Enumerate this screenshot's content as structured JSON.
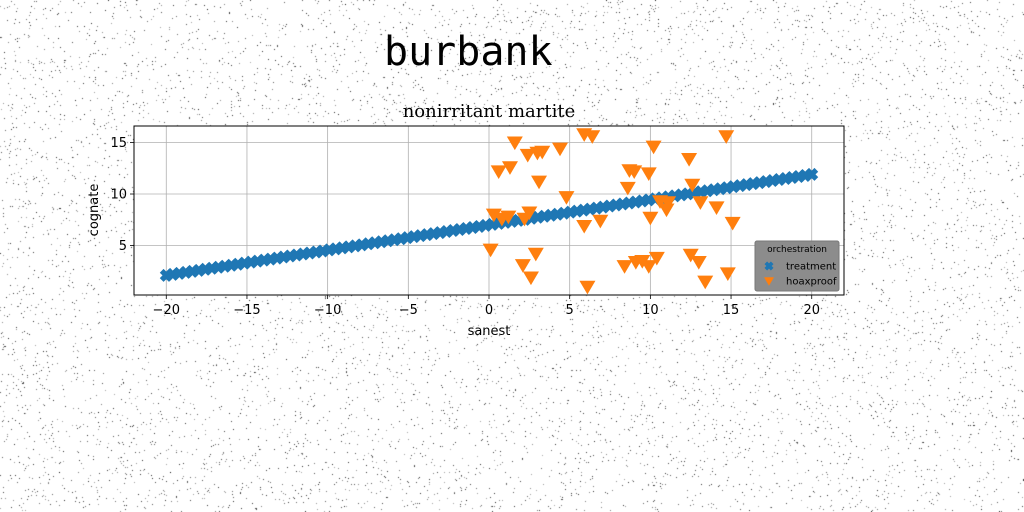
{
  "figure": {
    "suptitle": "burbank"
  },
  "chart_data": {
    "type": "scatter",
    "title": "nonirritant martite",
    "xlabel": "sanest",
    "ylabel": "cognate",
    "xlim": [
      -22,
      22
    ],
    "ylim": [
      0.2,
      16.6
    ],
    "xticks": [
      -20,
      -15,
      -10,
      -5,
      0,
      5,
      10,
      15,
      20
    ],
    "xtick_labels": [
      "−20",
      "−15",
      "−10",
      "−5",
      "0",
      "5",
      "10",
      "15",
      "20"
    ],
    "yticks": [
      5,
      10,
      15
    ],
    "ytick_labels": [
      "5",
      "10",
      "15"
    ],
    "grid": true,
    "legend": {
      "title": "orchestration",
      "placement": "lower-right"
    },
    "series": [
      {
        "name": "treatment",
        "marker": "X",
        "color": "#1f77b4",
        "line": {
          "x_start": -20,
          "x_end": 20,
          "y_start": 2.1,
          "y_end": 11.9,
          "count": 100
        }
      },
      {
        "name": "hoaxproof",
        "marker": "v",
        "color": "#ff7f0e",
        "points": [
          [
            0.1,
            4.6
          ],
          [
            0.3,
            8.0
          ],
          [
            0.8,
            7.6
          ],
          [
            0.6,
            12.2
          ],
          [
            1.2,
            7.8
          ],
          [
            1.3,
            12.6
          ],
          [
            1.6,
            15.0
          ],
          [
            2.1,
            3.1
          ],
          [
            2.2,
            7.6
          ],
          [
            2.4,
            13.8
          ],
          [
            2.5,
            8.2
          ],
          [
            2.6,
            1.9
          ],
          [
            2.9,
            4.2
          ],
          [
            3.0,
            14.0
          ],
          [
            3.1,
            11.2
          ],
          [
            3.3,
            14.1
          ],
          [
            4.4,
            14.4
          ],
          [
            4.8,
            9.7
          ],
          [
            5.9,
            6.9
          ],
          [
            5.9,
            15.8
          ],
          [
            6.1,
            1.0
          ],
          [
            6.4,
            15.6
          ],
          [
            6.9,
            7.4
          ],
          [
            8.4,
            3.0
          ],
          [
            8.6,
            10.6
          ],
          [
            8.7,
            12.3
          ],
          [
            9.0,
            12.2
          ],
          [
            9.1,
            3.4
          ],
          [
            9.5,
            3.5
          ],
          [
            9.9,
            3.0
          ],
          [
            9.9,
            12.0
          ],
          [
            10.0,
            7.7
          ],
          [
            10.2,
            14.6
          ],
          [
            10.4,
            3.8
          ],
          [
            10.6,
            9.3
          ],
          [
            11.0,
            8.5
          ],
          [
            11.1,
            9.2
          ],
          [
            12.4,
            13.4
          ],
          [
            12.5,
            4.1
          ],
          [
            12.6,
            10.9
          ],
          [
            13.0,
            3.4
          ],
          [
            13.1,
            9.2
          ],
          [
            13.4,
            1.5
          ],
          [
            14.1,
            8.7
          ],
          [
            14.7,
            15.6
          ],
          [
            14.8,
            2.3
          ],
          [
            15.1,
            7.2
          ]
        ]
      }
    ]
  }
}
